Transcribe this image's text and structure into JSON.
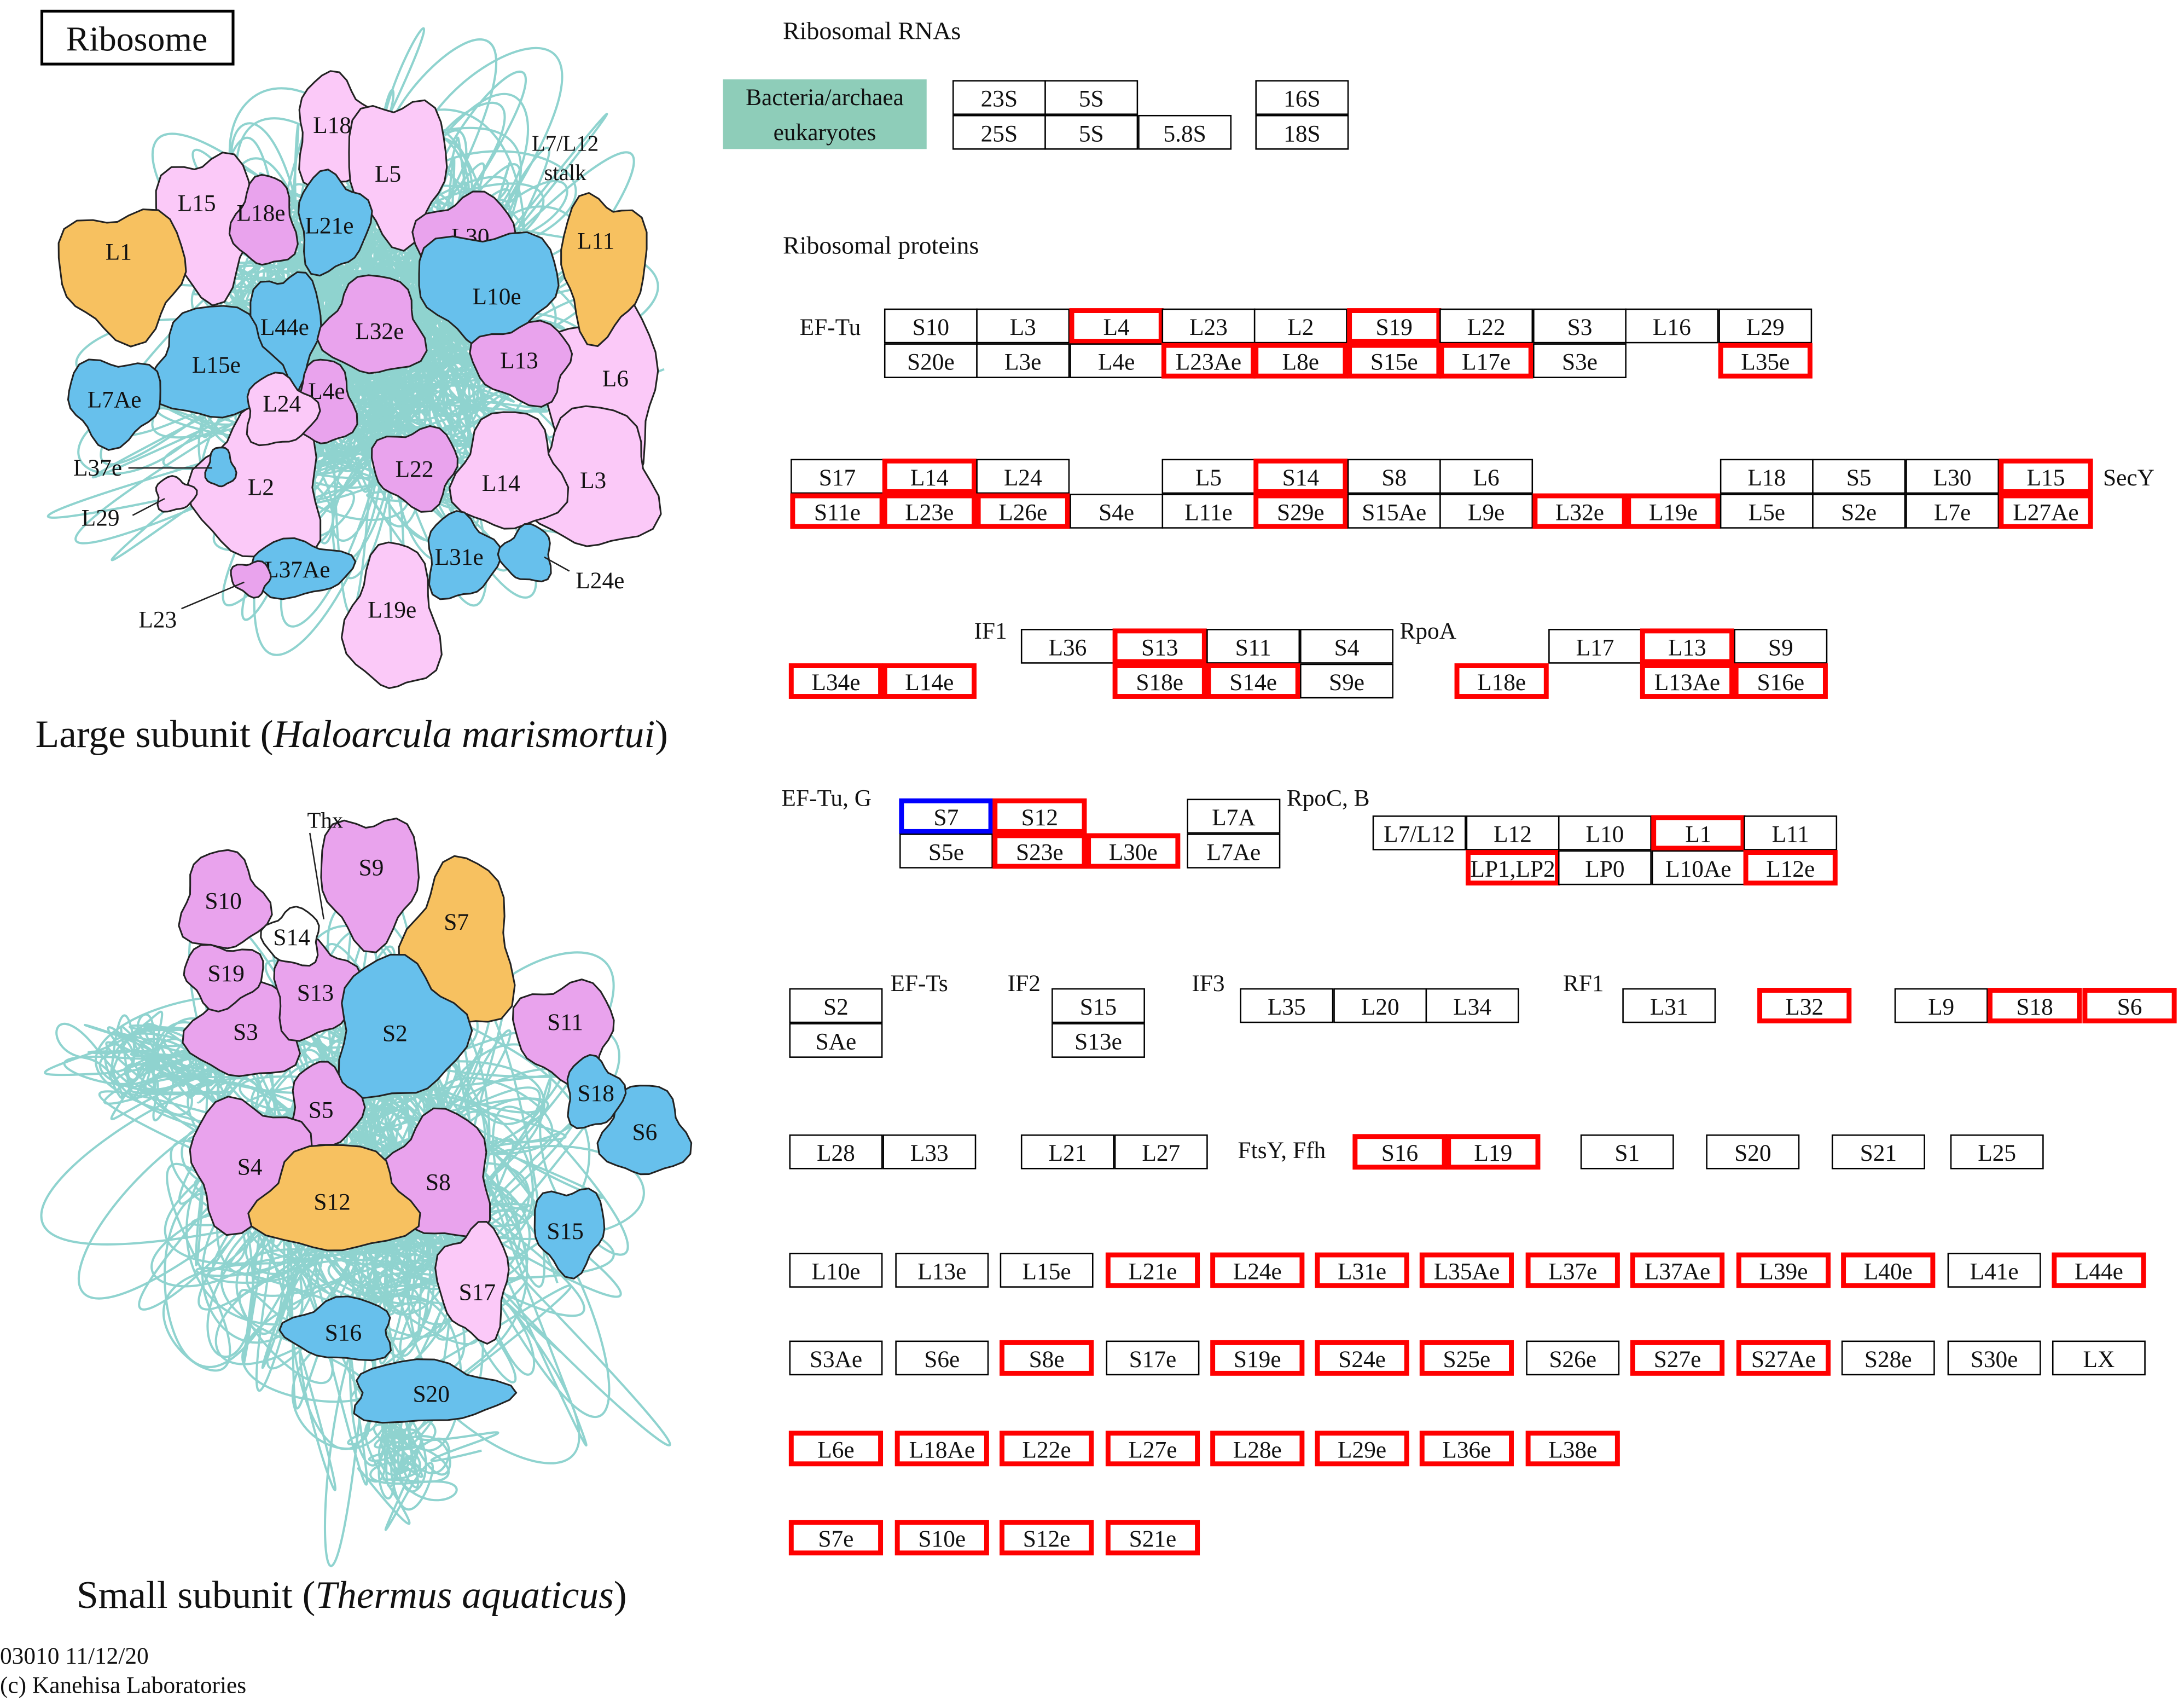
{
  "title": "Ribosome",
  "rna": {
    "header": "Ribosomal RNAs",
    "legend": [
      "Bacteria/archaea",
      "eukaryotes"
    ],
    "boxes": [
      {
        "label": "23S"
      },
      {
        "label": "5S"
      },
      {
        "label": "25S"
      },
      {
        "label": "5S"
      },
      {
        "label": "5.8S"
      },
      {
        "label": "16S"
      },
      {
        "label": "18S"
      }
    ]
  },
  "proteins_header": "Ribosomal proteins",
  "factors": [
    "EF-Tu",
    "SecY",
    "IF1",
    "RpoA",
    "EF-Tu, G",
    "RpoC, B",
    "EF-Ts",
    "IF2",
    "IF3",
    "RF1",
    "FtsY, Ffh"
  ],
  "proteins": [
    {
      "label": "S10"
    },
    {
      "label": "L3"
    },
    {
      "label": "L4",
      "border": "red"
    },
    {
      "label": "L23"
    },
    {
      "label": "L2"
    },
    {
      "label": "S19",
      "border": "red"
    },
    {
      "label": "L22"
    },
    {
      "label": "S3"
    },
    {
      "label": "L16"
    },
    {
      "label": "L29"
    },
    {
      "label": "S20e"
    },
    {
      "label": "L3e"
    },
    {
      "label": "L4e"
    },
    {
      "label": "L23Ae",
      "border": "red"
    },
    {
      "label": "L8e",
      "border": "red"
    },
    {
      "label": "S15e",
      "border": "red"
    },
    {
      "label": "L17e",
      "border": "red"
    },
    {
      "label": "S3e"
    },
    {
      "label": "L35e",
      "border": "red"
    },
    {
      "label": "S17"
    },
    {
      "label": "L14",
      "border": "red"
    },
    {
      "label": "L24"
    },
    {
      "label": "L5"
    },
    {
      "label": "S14",
      "border": "red"
    },
    {
      "label": "S8"
    },
    {
      "label": "L6"
    },
    {
      "label": "L18"
    },
    {
      "label": "S5"
    },
    {
      "label": "L30"
    },
    {
      "label": "L15",
      "border": "red"
    },
    {
      "label": "S11e",
      "border": "red"
    },
    {
      "label": "L23e",
      "border": "red"
    },
    {
      "label": "L26e",
      "border": "red"
    },
    {
      "label": "S4e"
    },
    {
      "label": "L11e"
    },
    {
      "label": "S29e",
      "border": "red"
    },
    {
      "label": "S15Ae"
    },
    {
      "label": "L9e"
    },
    {
      "label": "L32e",
      "border": "red"
    },
    {
      "label": "L19e",
      "border": "red"
    },
    {
      "label": "L5e"
    },
    {
      "label": "S2e"
    },
    {
      "label": "L7e"
    },
    {
      "label": "L27Ae",
      "border": "red"
    },
    {
      "label": "L36"
    },
    {
      "label": "S13",
      "border": "red"
    },
    {
      "label": "S11"
    },
    {
      "label": "S4"
    },
    {
      "label": "L34e",
      "border": "red"
    },
    {
      "label": "L14e",
      "border": "red"
    },
    {
      "label": "S18e",
      "border": "red"
    },
    {
      "label": "S14e",
      "border": "red"
    },
    {
      "label": "S9e"
    },
    {
      "label": "L17"
    },
    {
      "label": "L13",
      "border": "red"
    },
    {
      "label": "S9"
    },
    {
      "label": "L18e",
      "border": "red"
    },
    {
      "label": "L13Ae",
      "border": "red"
    },
    {
      "label": "S16e",
      "border": "red"
    },
    {
      "label": "S7",
      "border": "blue"
    },
    {
      "label": "S12",
      "border": "red"
    },
    {
      "label": "S5e"
    },
    {
      "label": "S23e",
      "border": "red"
    },
    {
      "label": "L30e",
      "border": "red"
    },
    {
      "label": "L7A"
    },
    {
      "label": "L7Ae"
    },
    {
      "label": "L7/L12"
    },
    {
      "label": "L12"
    },
    {
      "label": "L10"
    },
    {
      "label": "L1",
      "border": "red"
    },
    {
      "label": "L11"
    },
    {
      "label": "LP1,LP2",
      "border": "red"
    },
    {
      "label": "LP0"
    },
    {
      "label": "L10Ae"
    },
    {
      "label": "L12e",
      "border": "red"
    },
    {
      "label": "S2"
    },
    {
      "label": "SAe"
    },
    {
      "label": "S15"
    },
    {
      "label": "S13e"
    },
    {
      "label": "L35"
    },
    {
      "label": "L20"
    },
    {
      "label": "L34"
    },
    {
      "label": "L31"
    },
    {
      "label": "L32",
      "border": "red"
    },
    {
      "label": "L9"
    },
    {
      "label": "S18",
      "border": "red"
    },
    {
      "label": "S6",
      "border": "red"
    },
    {
      "label": "L28"
    },
    {
      "label": "L33"
    },
    {
      "label": "L21"
    },
    {
      "label": "L27"
    },
    {
      "label": "S16",
      "border": "red"
    },
    {
      "label": "L19",
      "border": "red"
    },
    {
      "label": "S1"
    },
    {
      "label": "S20"
    },
    {
      "label": "S21"
    },
    {
      "label": "L25"
    },
    {
      "label": "L10e"
    },
    {
      "label": "L13e"
    },
    {
      "label": "L15e"
    },
    {
      "label": "L21e",
      "border": "red"
    },
    {
      "label": "L24e",
      "border": "red"
    },
    {
      "label": "L31e",
      "border": "red"
    },
    {
      "label": "L35Ae",
      "border": "red"
    },
    {
      "label": "L37e",
      "border": "red"
    },
    {
      "label": "L37Ae",
      "border": "red"
    },
    {
      "label": "L39e",
      "border": "red"
    },
    {
      "label": "L40e",
      "border": "red"
    },
    {
      "label": "L41e"
    },
    {
      "label": "L44e",
      "border": "red"
    },
    {
      "label": "S3Ae"
    },
    {
      "label": "S6e"
    },
    {
      "label": "S8e",
      "border": "red"
    },
    {
      "label": "S17e"
    },
    {
      "label": "S19e",
      "border": "red"
    },
    {
      "label": "S24e",
      "border": "red"
    },
    {
      "label": "S25e",
      "border": "red"
    },
    {
      "label": "S26e"
    },
    {
      "label": "S27e",
      "border": "red"
    },
    {
      "label": "S27Ae",
      "border": "red"
    },
    {
      "label": "S28e"
    },
    {
      "label": "S30e"
    },
    {
      "label": "LX"
    },
    {
      "label": "L6e",
      "border": "red"
    },
    {
      "label": "L18Ae",
      "border": "red"
    },
    {
      "label": "L22e",
      "border": "red"
    },
    {
      "label": "L27e",
      "border": "red"
    },
    {
      "label": "L28e",
      "border": "red"
    },
    {
      "label": "L29e",
      "border": "red"
    },
    {
      "label": "L36e",
      "border": "red"
    },
    {
      "label": "L38e",
      "border": "red"
    },
    {
      "label": "S7e",
      "border": "red"
    },
    {
      "label": "S10e",
      "border": "red"
    },
    {
      "label": "S12e",
      "border": "red"
    },
    {
      "label": "S21e",
      "border": "red"
    }
  ],
  "large": {
    "prefix": "Large subunit (",
    "organism": "Haloarcula marismortui",
    "suffix": ")",
    "notes": [
      "L7/L12",
      "stalk"
    ],
    "blobs": [
      {
        "label": "L6",
        "color": "#fbc9f8"
      },
      {
        "label": "L3",
        "color": "#fbc9f8"
      },
      {
        "label": "L2",
        "color": "#fbc9f8"
      },
      {
        "label": "L18",
        "color": "#fbc9f8"
      },
      {
        "label": "L5",
        "color": "#fbc9f8"
      },
      {
        "label": "L15",
        "color": "#fbc9f8"
      },
      {
        "label": "L18e",
        "color": "#e9a3ed"
      },
      {
        "label": "L21e",
        "color": "#67c0ec"
      },
      {
        "label": "L30",
        "color": "#e9a3ed"
      },
      {
        "label": "L1",
        "color": "#f7c160"
      },
      {
        "label": "L11",
        "color": "#f7c160"
      },
      {
        "label": "L10e",
        "color": "#67c0ec"
      },
      {
        "label": "L44e",
        "color": "#67c0ec"
      },
      {
        "label": "L32e",
        "color": "#e9a3ed"
      },
      {
        "label": "L15e",
        "color": "#67c0ec"
      },
      {
        "label": "L13",
        "color": "#e9a3ed"
      },
      {
        "label": "L7Ae",
        "color": "#67c0ec"
      },
      {
        "label": "L4e",
        "color": "#e9a3ed"
      },
      {
        "label": "L24",
        "color": "#fbc9f8"
      },
      {
        "label": "L22",
        "color": "#e9a3ed"
      },
      {
        "label": "L14",
        "color": "#fbc9f8"
      },
      {
        "label": "L31e",
        "color": "#67c0ec"
      },
      {
        "label": "L37Ae",
        "color": "#67c0ec"
      },
      {
        "label": "L24e",
        "color": "#67c0ec"
      },
      {
        "label": "L19e",
        "color": "#fbc9f8"
      },
      {
        "label": "L37e",
        "color": "#67c0ec"
      },
      {
        "label": "L29",
        "color": "#fbc9f8"
      },
      {
        "label": "L23",
        "color": "#e9a3ed"
      }
    ]
  },
  "small": {
    "prefix": "Small subunit (",
    "organism": "Thermus aquaticus",
    "suffix": ")",
    "notes": [
      "Thx"
    ],
    "blobs": [
      {
        "label": "S10",
        "color": "#e9a3ed"
      },
      {
        "label": "S9",
        "color": "#e9a3ed"
      },
      {
        "label": "S7",
        "color": "#f7c160"
      },
      {
        "label": "S3",
        "color": "#e9a3ed"
      },
      {
        "label": "S13",
        "color": "#e9a3ed"
      },
      {
        "label": "S19",
        "color": "#e9a3ed"
      },
      {
        "label": "S14",
        "color": "#ffffff"
      },
      {
        "label": "S2",
        "color": "#67c0ec"
      },
      {
        "label": "S11",
        "color": "#e9a3ed"
      },
      {
        "label": "S6",
        "color": "#67c0ec"
      },
      {
        "label": "S18",
        "color": "#67c0ec"
      },
      {
        "label": "S5",
        "color": "#e9a3ed"
      },
      {
        "label": "S4",
        "color": "#e9a3ed"
      },
      {
        "label": "S8",
        "color": "#e9a3ed"
      },
      {
        "label": "S12",
        "color": "#f7c160"
      },
      {
        "label": "S15",
        "color": "#67c0ec"
      },
      {
        "label": "S17",
        "color": "#fbc9f8"
      },
      {
        "label": "S16",
        "color": "#67c0ec"
      },
      {
        "label": "S20",
        "color": "#67c0ec"
      }
    ]
  },
  "footer": [
    "03010 11/12/20",
    "(c) Kanehisa Laboratories"
  ]
}
